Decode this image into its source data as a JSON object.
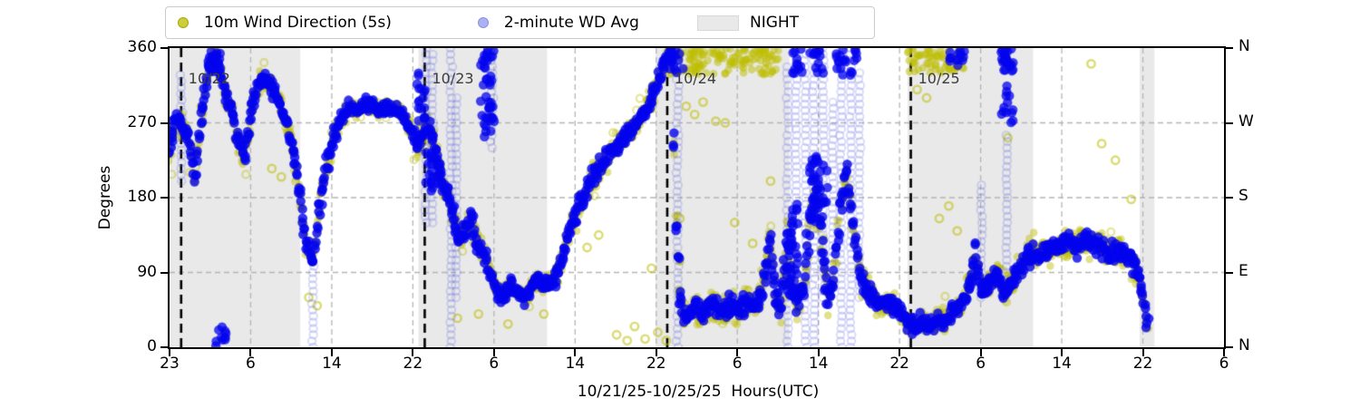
{
  "figure": {
    "legend": {
      "items": [
        {
          "label": "10m Wind Direction (5s)",
          "marker": "dot",
          "color": "#cdcd3d",
          "edge": "#a8a800"
        },
        {
          "label": "2-minute WD Avg",
          "marker": "dot",
          "color": "#aab2f2",
          "edge": "#8890e8"
        },
        {
          "label": "NIGHT",
          "marker": "patch",
          "color": "#e9e9e9",
          "edge": "#d8d8d8"
        }
      ]
    },
    "x_axis": {
      "label": "10/21/25-10/25/25  Hours(UTC)",
      "tick_labels": [
        "23",
        "6",
        "14",
        "22",
        "6",
        "14",
        "22",
        "6",
        "14",
        "22",
        "6",
        "14",
        "22",
        "6"
      ]
    },
    "y_axis": {
      "label": "Degrees",
      "tick_labels": [
        "0",
        "90",
        "180",
        "270",
        "360"
      ]
    },
    "y_axis_right": {
      "tick_labels": [
        "N",
        "E",
        "S",
        "W",
        "N"
      ]
    },
    "day_markers": [
      {
        "label": "10/22",
        "u": 0.011
      },
      {
        "label": "10/23",
        "u": 0.242
      },
      {
        "label": "10/24",
        "u": 0.472
      },
      {
        "label": "10/25",
        "u": 0.703
      }
    ]
  },
  "chart_data": {
    "type": "scatter",
    "title": "",
    "xlabel": "10/21/25-10/25/25  Hours(UTC)",
    "ylabel": "Degrees",
    "ylim": [
      0,
      360
    ],
    "grid_degrees": [
      90,
      180,
      270
    ],
    "x_tick_labels_hours_utc": [
      "23",
      "6",
      "14",
      "22",
      "6",
      "14",
      "22",
      "6",
      "14",
      "22",
      "6",
      "14",
      "22",
      "6"
    ],
    "compass_labels_bottom_to_top": [
      "N",
      "E",
      "S",
      "W",
      "N"
    ],
    "series": [
      {
        "name": "10m Wind Direction (5s)",
        "color": "#bdbd00",
        "role": "raw 5-second wind direction"
      },
      {
        "name": "2-minute WD Avg",
        "color": "#0404ee",
        "role": "2-minute averaged wind direction"
      }
    ],
    "night_label": "NIGHT",
    "night_bands_u": [
      [
        0.0,
        0.124
      ],
      [
        0.236,
        0.358
      ],
      [
        0.461,
        0.588
      ],
      [
        0.7,
        0.819
      ],
      [
        0.92,
        0.934
      ]
    ],
    "day_lines_u": [
      0.011,
      0.242,
      0.472,
      0.703
    ],
    "trace": [
      [
        0.0,
        235,
        45
      ],
      [
        0.005,
        270,
        40
      ],
      [
        0.011,
        268,
        38
      ],
      [
        0.018,
        255,
        40
      ],
      [
        0.024,
        205,
        35
      ],
      [
        0.03,
        275,
        35
      ],
      [
        0.037,
        335,
        30
      ],
      [
        0.044,
        350,
        28
      ],
      [
        0.052,
        310,
        32
      ],
      [
        0.058,
        290,
        35
      ],
      [
        0.065,
        245,
        38
      ],
      [
        0.071,
        225,
        35
      ],
      [
        0.078,
        290,
        35
      ],
      [
        0.087,
        325,
        30
      ],
      [
        0.095,
        315,
        30
      ],
      [
        0.102,
        300,
        30
      ],
      [
        0.11,
        275,
        32
      ],
      [
        0.117,
        240,
        35
      ],
      [
        0.124,
        175,
        40
      ],
      [
        0.13,
        125,
        35
      ],
      [
        0.136,
        105,
        35
      ],
      [
        0.142,
        165,
        40
      ],
      [
        0.149,
        215,
        38
      ],
      [
        0.156,
        255,
        32
      ],
      [
        0.163,
        275,
        28
      ],
      [
        0.171,
        290,
        24
      ],
      [
        0.179,
        285,
        22
      ],
      [
        0.187,
        292,
        22
      ],
      [
        0.196,
        288,
        22
      ],
      [
        0.205,
        285,
        22
      ],
      [
        0.213,
        288,
        22
      ],
      [
        0.222,
        278,
        24
      ],
      [
        0.228,
        265,
        28
      ],
      [
        0.234,
        245,
        40
      ],
      [
        0.239,
        250,
        42
      ],
      [
        0.243,
        265,
        40
      ],
      [
        0.249,
        255,
        38
      ],
      [
        0.254,
        225,
        35
      ],
      [
        0.259,
        195,
        32
      ],
      [
        0.264,
        185,
        30
      ],
      [
        0.269,
        160,
        32
      ],
      [
        0.274,
        130,
        30
      ],
      [
        0.279,
        140,
        32
      ],
      [
        0.286,
        155,
        35
      ],
      [
        0.291,
        125,
        32
      ],
      [
        0.298,
        115,
        32
      ],
      [
        0.304,
        90,
        28
      ],
      [
        0.31,
        70,
        25
      ],
      [
        0.317,
        60,
        24
      ],
      [
        0.324,
        75,
        26
      ],
      [
        0.331,
        65,
        24
      ],
      [
        0.338,
        60,
        24
      ],
      [
        0.347,
        80,
        26
      ],
      [
        0.355,
        75,
        26
      ],
      [
        0.364,
        80,
        28
      ],
      [
        0.371,
        100,
        32
      ],
      [
        0.379,
        140,
        40
      ],
      [
        0.388,
        170,
        42
      ],
      [
        0.396,
        190,
        42
      ],
      [
        0.405,
        210,
        40
      ],
      [
        0.414,
        225,
        40
      ],
      [
        0.422,
        240,
        38
      ],
      [
        0.431,
        252,
        36
      ],
      [
        0.439,
        262,
        34
      ],
      [
        0.448,
        278,
        32
      ],
      [
        0.455,
        295,
        30
      ],
      [
        0.462,
        315,
        28
      ],
      [
        0.468,
        335,
        26
      ],
      [
        0.473,
        350,
        22
      ],
      [
        0.477,
        345,
        25
      ],
      [
        0.481,
        150,
        45
      ],
      [
        0.484,
        60,
        40
      ],
      [
        0.488,
        35,
        35
      ],
      [
        0.497,
        45,
        40
      ],
      [
        0.506,
        40,
        42
      ],
      [
        0.514,
        50,
        45
      ],
      [
        0.523,
        42,
        45
      ],
      [
        0.531,
        52,
        45
      ],
      [
        0.54,
        45,
        45
      ],
      [
        0.549,
        55,
        48
      ],
      [
        0.557,
        48,
        45
      ],
      [
        0.564,
        80,
        50
      ],
      [
        0.57,
        130,
        45
      ],
      [
        0.575,
        60,
        45
      ],
      [
        0.58,
        45,
        42
      ],
      [
        0.586,
        130,
        50
      ],
      [
        0.591,
        60,
        45
      ],
      [
        0.596,
        55,
        45
      ],
      [
        0.602,
        70,
        48
      ],
      [
        0.607,
        150,
        50
      ],
      [
        0.613,
        190,
        45
      ],
      [
        0.619,
        120,
        50
      ],
      [
        0.624,
        60,
        45
      ],
      [
        0.63,
        80,
        48
      ],
      [
        0.636,
        170,
        50
      ],
      [
        0.642,
        210,
        45
      ],
      [
        0.648,
        150,
        48
      ],
      [
        0.654,
        90,
        45
      ],
      [
        0.66,
        75,
        42
      ],
      [
        0.667,
        60,
        40
      ],
      [
        0.675,
        50,
        38
      ],
      [
        0.683,
        55,
        38
      ],
      [
        0.691,
        45,
        36
      ],
      [
        0.698,
        35,
        34
      ],
      [
        0.705,
        25,
        30
      ],
      [
        0.713,
        30,
        32
      ],
      [
        0.721,
        25,
        30
      ],
      [
        0.728,
        35,
        32
      ],
      [
        0.736,
        30,
        32
      ],
      [
        0.744,
        45,
        34
      ],
      [
        0.752,
        55,
        36
      ],
      [
        0.759,
        75,
        38
      ],
      [
        0.764,
        115,
        40
      ],
      [
        0.77,
        70,
        36
      ],
      [
        0.777,
        75,
        36
      ],
      [
        0.784,
        85,
        38
      ],
      [
        0.791,
        65,
        36
      ],
      [
        0.797,
        75,
        36
      ],
      [
        0.804,
        90,
        38
      ],
      [
        0.812,
        105,
        40
      ],
      [
        0.82,
        115,
        42
      ],
      [
        0.828,
        112,
        42
      ],
      [
        0.838,
        120,
        42
      ],
      [
        0.849,
        125,
        42
      ],
      [
        0.859,
        122,
        42
      ],
      [
        0.869,
        128,
        44
      ],
      [
        0.88,
        122,
        42
      ],
      [
        0.89,
        118,
        42
      ],
      [
        0.9,
        115,
        40
      ],
      [
        0.909,
        108,
        40
      ],
      [
        0.916,
        95,
        40
      ],
      [
        0.921,
        70,
        38
      ],
      [
        0.925,
        40,
        35
      ],
      [
        0.929,
        15,
        30
      ]
    ],
    "avg_columns": [
      [
        0.011,
        200,
        330
      ],
      [
        0.136,
        0,
        110
      ],
      [
        0.243,
        150,
        360
      ],
      [
        0.249,
        150,
        355
      ],
      [
        0.267,
        0,
        360
      ],
      [
        0.272,
        60,
        300
      ],
      [
        0.306,
        240,
        360
      ],
      [
        0.482,
        0,
        360
      ],
      [
        0.586,
        0,
        340
      ],
      [
        0.594,
        150,
        360
      ],
      [
        0.603,
        0,
        360
      ],
      [
        0.611,
        0,
        360
      ],
      [
        0.62,
        60,
        360
      ],
      [
        0.629,
        100,
        300
      ],
      [
        0.637,
        0,
        360
      ],
      [
        0.646,
        0,
        360
      ],
      [
        0.654,
        60,
        330
      ],
      [
        0.77,
        60,
        200
      ],
      [
        0.794,
        90,
        260
      ]
    ],
    "blobs": [
      [
        0.037,
        0.05,
        330,
        360,
        "blue"
      ],
      [
        0.043,
        0.057,
        0,
        25,
        "blue"
      ],
      [
        0.234,
        0.243,
        270,
        330,
        "blue"
      ],
      [
        0.243,
        0.259,
        185,
        235,
        "blue"
      ],
      [
        0.295,
        0.308,
        245,
        360,
        "blue"
      ],
      [
        0.472,
        0.487,
        330,
        360,
        "blue"
      ],
      [
        0.473,
        0.58,
        328,
        360,
        "yellow"
      ],
      [
        0.584,
        0.596,
        60,
        175,
        "blue"
      ],
      [
        0.59,
        0.6,
        318,
        360,
        "blue"
      ],
      [
        0.607,
        0.622,
        330,
        360,
        "blue"
      ],
      [
        0.607,
        0.624,
        150,
        230,
        "blue"
      ],
      [
        0.632,
        0.652,
        325,
        360,
        "blue"
      ],
      [
        0.7,
        0.756,
        330,
        360,
        "yellow"
      ],
      [
        0.74,
        0.756,
        333,
        360,
        "blue"
      ],
      [
        0.785,
        0.8,
        340,
        360,
        "blue"
      ],
      [
        0.789,
        0.8,
        268,
        360,
        "blue"
      ]
    ],
    "outliers": [
      [
        0.097,
        215
      ],
      [
        0.106,
        205
      ],
      [
        0.132,
        60
      ],
      [
        0.14,
        50
      ],
      [
        0.273,
        35
      ],
      [
        0.293,
        40
      ],
      [
        0.321,
        28
      ],
      [
        0.355,
        40
      ],
      [
        0.396,
        120
      ],
      [
        0.407,
        135
      ],
      [
        0.424,
        15
      ],
      [
        0.434,
        8
      ],
      [
        0.441,
        25
      ],
      [
        0.451,
        10
      ],
      [
        0.457,
        95
      ],
      [
        0.463,
        18
      ],
      [
        0.471,
        8
      ],
      [
        0.484,
        155
      ],
      [
        0.49,
        290
      ],
      [
        0.498,
        280
      ],
      [
        0.506,
        295
      ],
      [
        0.518,
        272
      ],
      [
        0.527,
        270
      ],
      [
        0.536,
        150
      ],
      [
        0.553,
        125
      ],
      [
        0.57,
        200
      ],
      [
        0.709,
        310
      ],
      [
        0.718,
        300
      ],
      [
        0.73,
        155
      ],
      [
        0.739,
        170
      ],
      [
        0.747,
        140
      ],
      [
        0.795,
        252
      ],
      [
        0.874,
        341
      ],
      [
        0.884,
        245
      ],
      [
        0.897,
        225
      ],
      [
        0.912,
        178
      ]
    ],
    "colors": {
      "raw_yellow": "#bdbd00",
      "avg_blue": "#0404ee",
      "night_band": "#e9e9e9",
      "grid": "#b5b5b5",
      "day_line": "#000000",
      "day_label_text": "#3d3d3d"
    }
  }
}
